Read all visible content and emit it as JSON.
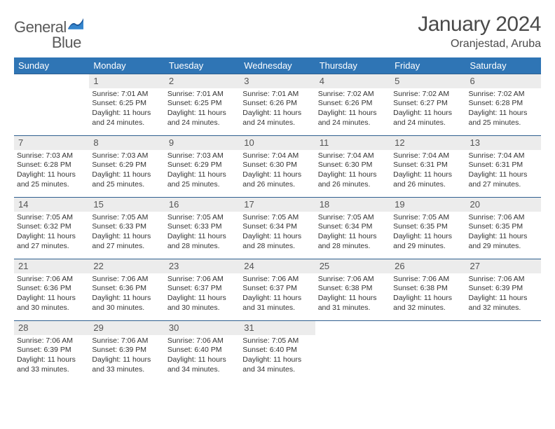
{
  "brand": {
    "word1": "General",
    "word2": "Blue"
  },
  "title": "January 2024",
  "location": "Oranjestad, Aruba",
  "colors": {
    "header_bg": "#2f75b5",
    "header_text": "#ffffff",
    "rule": "#2f5f8f",
    "daynum_bg": "#ececec",
    "daynum_text": "#555555",
    "body_text": "#333333",
    "logo_gray": "#5a5a5a",
    "logo_blue": "#2f75b5",
    "page_bg": "#ffffff"
  },
  "typography": {
    "title_size": 30,
    "location_size": 16,
    "dayhead_size": 13,
    "daynum_size": 13,
    "cell_size": 10.5
  },
  "days": [
    "Sunday",
    "Monday",
    "Tuesday",
    "Wednesday",
    "Thursday",
    "Friday",
    "Saturday"
  ],
  "weeks": [
    [
      null,
      {
        "n": "1",
        "sr": "Sunrise: 7:01 AM",
        "ss": "Sunset: 6:25 PM",
        "d1": "Daylight: 11 hours",
        "d2": "and 24 minutes."
      },
      {
        "n": "2",
        "sr": "Sunrise: 7:01 AM",
        "ss": "Sunset: 6:25 PM",
        "d1": "Daylight: 11 hours",
        "d2": "and 24 minutes."
      },
      {
        "n": "3",
        "sr": "Sunrise: 7:01 AM",
        "ss": "Sunset: 6:26 PM",
        "d1": "Daylight: 11 hours",
        "d2": "and 24 minutes."
      },
      {
        "n": "4",
        "sr": "Sunrise: 7:02 AM",
        "ss": "Sunset: 6:26 PM",
        "d1": "Daylight: 11 hours",
        "d2": "and 24 minutes."
      },
      {
        "n": "5",
        "sr": "Sunrise: 7:02 AM",
        "ss": "Sunset: 6:27 PM",
        "d1": "Daylight: 11 hours",
        "d2": "and 24 minutes."
      },
      {
        "n": "6",
        "sr": "Sunrise: 7:02 AM",
        "ss": "Sunset: 6:28 PM",
        "d1": "Daylight: 11 hours",
        "d2": "and 25 minutes."
      }
    ],
    [
      {
        "n": "7",
        "sr": "Sunrise: 7:03 AM",
        "ss": "Sunset: 6:28 PM",
        "d1": "Daylight: 11 hours",
        "d2": "and 25 minutes."
      },
      {
        "n": "8",
        "sr": "Sunrise: 7:03 AM",
        "ss": "Sunset: 6:29 PM",
        "d1": "Daylight: 11 hours",
        "d2": "and 25 minutes."
      },
      {
        "n": "9",
        "sr": "Sunrise: 7:03 AM",
        "ss": "Sunset: 6:29 PM",
        "d1": "Daylight: 11 hours",
        "d2": "and 25 minutes."
      },
      {
        "n": "10",
        "sr": "Sunrise: 7:04 AM",
        "ss": "Sunset: 6:30 PM",
        "d1": "Daylight: 11 hours",
        "d2": "and 26 minutes."
      },
      {
        "n": "11",
        "sr": "Sunrise: 7:04 AM",
        "ss": "Sunset: 6:30 PM",
        "d1": "Daylight: 11 hours",
        "d2": "and 26 minutes."
      },
      {
        "n": "12",
        "sr": "Sunrise: 7:04 AM",
        "ss": "Sunset: 6:31 PM",
        "d1": "Daylight: 11 hours",
        "d2": "and 26 minutes."
      },
      {
        "n": "13",
        "sr": "Sunrise: 7:04 AM",
        "ss": "Sunset: 6:31 PM",
        "d1": "Daylight: 11 hours",
        "d2": "and 27 minutes."
      }
    ],
    [
      {
        "n": "14",
        "sr": "Sunrise: 7:05 AM",
        "ss": "Sunset: 6:32 PM",
        "d1": "Daylight: 11 hours",
        "d2": "and 27 minutes."
      },
      {
        "n": "15",
        "sr": "Sunrise: 7:05 AM",
        "ss": "Sunset: 6:33 PM",
        "d1": "Daylight: 11 hours",
        "d2": "and 27 minutes."
      },
      {
        "n": "16",
        "sr": "Sunrise: 7:05 AM",
        "ss": "Sunset: 6:33 PM",
        "d1": "Daylight: 11 hours",
        "d2": "and 28 minutes."
      },
      {
        "n": "17",
        "sr": "Sunrise: 7:05 AM",
        "ss": "Sunset: 6:34 PM",
        "d1": "Daylight: 11 hours",
        "d2": "and 28 minutes."
      },
      {
        "n": "18",
        "sr": "Sunrise: 7:05 AM",
        "ss": "Sunset: 6:34 PM",
        "d1": "Daylight: 11 hours",
        "d2": "and 28 minutes."
      },
      {
        "n": "19",
        "sr": "Sunrise: 7:05 AM",
        "ss": "Sunset: 6:35 PM",
        "d1": "Daylight: 11 hours",
        "d2": "and 29 minutes."
      },
      {
        "n": "20",
        "sr": "Sunrise: 7:06 AM",
        "ss": "Sunset: 6:35 PM",
        "d1": "Daylight: 11 hours",
        "d2": "and 29 minutes."
      }
    ],
    [
      {
        "n": "21",
        "sr": "Sunrise: 7:06 AM",
        "ss": "Sunset: 6:36 PM",
        "d1": "Daylight: 11 hours",
        "d2": "and 30 minutes."
      },
      {
        "n": "22",
        "sr": "Sunrise: 7:06 AM",
        "ss": "Sunset: 6:36 PM",
        "d1": "Daylight: 11 hours",
        "d2": "and 30 minutes."
      },
      {
        "n": "23",
        "sr": "Sunrise: 7:06 AM",
        "ss": "Sunset: 6:37 PM",
        "d1": "Daylight: 11 hours",
        "d2": "and 30 minutes."
      },
      {
        "n": "24",
        "sr": "Sunrise: 7:06 AM",
        "ss": "Sunset: 6:37 PM",
        "d1": "Daylight: 11 hours",
        "d2": "and 31 minutes."
      },
      {
        "n": "25",
        "sr": "Sunrise: 7:06 AM",
        "ss": "Sunset: 6:38 PM",
        "d1": "Daylight: 11 hours",
        "d2": "and 31 minutes."
      },
      {
        "n": "26",
        "sr": "Sunrise: 7:06 AM",
        "ss": "Sunset: 6:38 PM",
        "d1": "Daylight: 11 hours",
        "d2": "and 32 minutes."
      },
      {
        "n": "27",
        "sr": "Sunrise: 7:06 AM",
        "ss": "Sunset: 6:39 PM",
        "d1": "Daylight: 11 hours",
        "d2": "and 32 minutes."
      }
    ],
    [
      {
        "n": "28",
        "sr": "Sunrise: 7:06 AM",
        "ss": "Sunset: 6:39 PM",
        "d1": "Daylight: 11 hours",
        "d2": "and 33 minutes."
      },
      {
        "n": "29",
        "sr": "Sunrise: 7:06 AM",
        "ss": "Sunset: 6:39 PM",
        "d1": "Daylight: 11 hours",
        "d2": "and 33 minutes."
      },
      {
        "n": "30",
        "sr": "Sunrise: 7:06 AM",
        "ss": "Sunset: 6:40 PM",
        "d1": "Daylight: 11 hours",
        "d2": "and 34 minutes."
      },
      {
        "n": "31",
        "sr": "Sunrise: 7:05 AM",
        "ss": "Sunset: 6:40 PM",
        "d1": "Daylight: 11 hours",
        "d2": "and 34 minutes."
      },
      null,
      null,
      null
    ]
  ]
}
